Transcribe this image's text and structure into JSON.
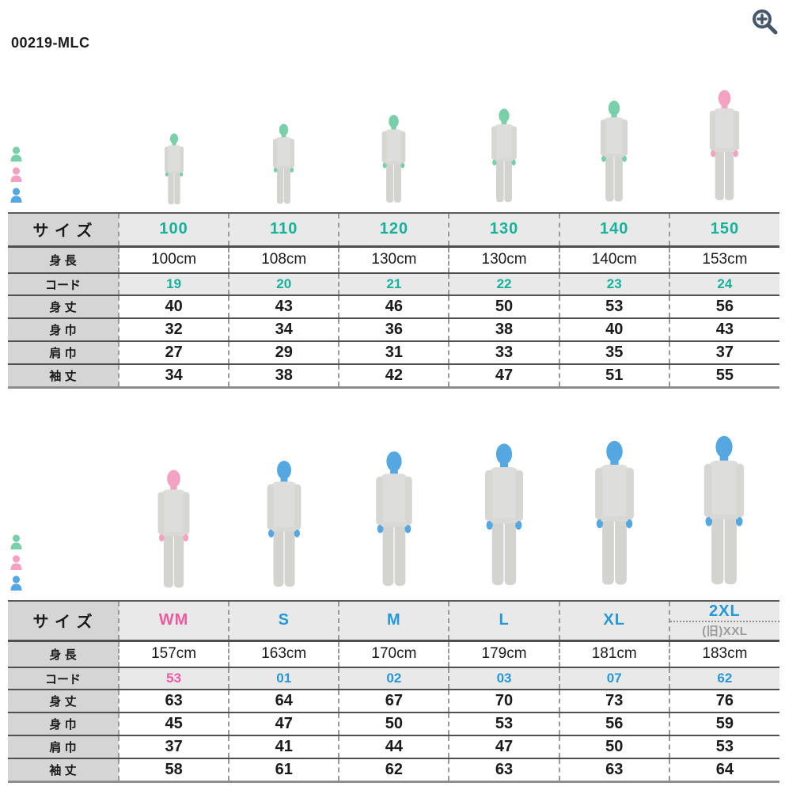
{
  "page": {
    "title": "00219-MLC"
  },
  "toolbar": {
    "zoom_icon_name": "zoom-in-magnifier",
    "zoom_icon_color": "#46576b"
  },
  "legend": {
    "items": [
      {
        "id": "child",
        "label": "子供モデル",
        "color": "#79cfa9"
      },
      {
        "id": "female",
        "label": "女性モデル",
        "color": "#f3a2c2"
      },
      {
        "id": "male",
        "label": "男性モデル",
        "color": "#55a7e1"
      }
    ]
  },
  "figure_colors": {
    "child": "#79cfa9",
    "female": "#f3a2c2",
    "male": "#55a7e1"
  },
  "row_labels": {
    "size": "サ イ ズ",
    "height": "身 長",
    "code": "コード",
    "body_length": "身 丈",
    "body_width": "身 巾",
    "shoulder_width": "肩 巾",
    "sleeve_length": "袖 丈"
  },
  "kids_table": {
    "accents": [
      "#14b19b",
      "#14b19b",
      "#14b19b",
      "#14b19b",
      "#14b19b",
      "#14b19b"
    ],
    "model_types": [
      "child",
      "child",
      "child",
      "child",
      "child",
      "female"
    ],
    "sizes": [
      "100",
      "110",
      "120",
      "130",
      "140",
      "150"
    ],
    "heights": [
      "100cm",
      "108cm",
      "130cm",
      "130cm",
      "140cm",
      "153cm"
    ],
    "codes": [
      "19",
      "20",
      "21",
      "22",
      "23",
      "24"
    ],
    "body_length": [
      "40",
      "43",
      "46",
      "50",
      "53",
      "56"
    ],
    "body_width": [
      "32",
      "34",
      "36",
      "38",
      "40",
      "43"
    ],
    "shoulder_width": [
      "27",
      "29",
      "31",
      "33",
      "35",
      "37"
    ],
    "sleeve_length": [
      "34",
      "38",
      "42",
      "47",
      "51",
      "55"
    ]
  },
  "adult_table": {
    "accents": [
      "#ed5a9d",
      "#2598d5",
      "#2598d5",
      "#2598d5",
      "#2598d5",
      "#2598d5"
    ],
    "model_types": [
      "female",
      "male",
      "male",
      "male",
      "male",
      "male"
    ],
    "sizes": [
      "WM",
      "S",
      "M",
      "L",
      "XL",
      "2XL"
    ],
    "size_note": "(旧)XXL",
    "heights": [
      "157cm",
      "163cm",
      "170cm",
      "179cm",
      "181cm",
      "183cm"
    ],
    "codes": [
      "53",
      "01",
      "02",
      "03",
      "07",
      "62"
    ],
    "body_length": [
      "63",
      "64",
      "67",
      "70",
      "73",
      "76"
    ],
    "body_width": [
      "45",
      "47",
      "50",
      "53",
      "56",
      "59"
    ],
    "shoulder_width": [
      "37",
      "41",
      "44",
      "47",
      "50",
      "53"
    ],
    "sleeve_length": [
      "58",
      "61",
      "62",
      "63",
      "63",
      "64"
    ]
  }
}
